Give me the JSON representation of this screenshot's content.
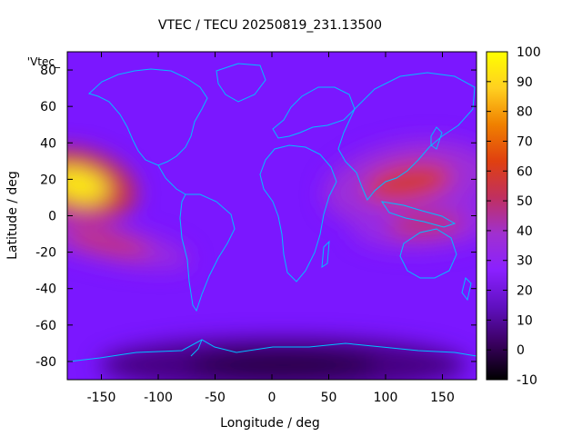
{
  "chart_data": {
    "type": "heatmap",
    "title": "VTEC / TECU 20250819_231.13500",
    "xlabel": "Longitude / deg",
    "ylabel": "Latitude / deg",
    "xlim": [
      -180,
      180
    ],
    "ylim": [
      -90,
      90
    ],
    "x_ticks": [
      -150,
      -100,
      -50,
      0,
      50,
      100,
      150
    ],
    "y_ticks": [
      -80,
      -60,
      -40,
      -20,
      0,
      20,
      40,
      60,
      80
    ],
    "key_label": "'Vtec_",
    "colorbar": {
      "range": [
        -10,
        100
      ],
      "ticks": [
        -10,
        0,
        10,
        20,
        30,
        40,
        50,
        60,
        70,
        80,
        90,
        100
      ],
      "palette": [
        "#000000",
        "#3a0060",
        "#6010c0",
        "#8a20ff",
        "#a030d0",
        "#c03060",
        "#e04010",
        "#f08000",
        "#ffd020",
        "#ffff00"
      ]
    },
    "background_level": 15,
    "features": [
      {
        "name": "pacific-crest-north",
        "lon": -170,
        "lat": 17,
        "peak": 95
      },
      {
        "name": "pacific-crest-south",
        "lon": -145,
        "lat": -15,
        "peak": 55
      },
      {
        "name": "asia-crest-north",
        "lon": 120,
        "lat": 18,
        "peak": 58
      },
      {
        "name": "asia-crest-south",
        "lon": 135,
        "lat": -5,
        "peak": 52
      },
      {
        "name": "polar-hole",
        "lon": 10,
        "lat": -82,
        "peak": -2
      }
    ],
    "overlay": "coastlines",
    "coastline_color": "#00bfff"
  }
}
